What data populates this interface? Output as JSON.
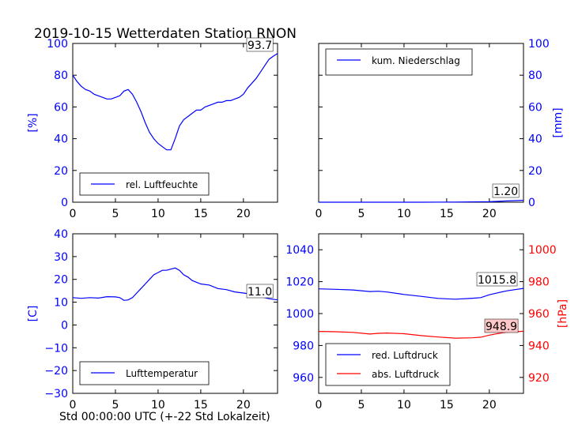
{
  "figure": {
    "title": "2019-10-15 Wetterdaten Station RNON",
    "xlabel": "Std 00:00:00 UTC (+-22 Std Lokalzeit)"
  },
  "colors": {
    "blue": "#0000ff",
    "red": "#ff0000",
    "annot_bg": "#ffffff",
    "annot_bg_red": "#ffc8c8"
  },
  "chart_data": [
    {
      "id": "humidity",
      "type": "line",
      "ylabel": "[%]",
      "xlim": [
        0,
        24
      ],
      "ylim": [
        0,
        100
      ],
      "xticks": [
        0,
        5,
        10,
        15,
        20
      ],
      "yticks": [
        0,
        20,
        40,
        60,
        80,
        100
      ],
      "legend": "bottom-left",
      "annotation": "93.7",
      "series": [
        {
          "name": "rel. Luftfeuchte",
          "color": "#0000ff",
          "x": [
            0,
            0.5,
            1,
            1.5,
            2,
            2.5,
            3,
            3.5,
            4,
            4.5,
            5,
            5.5,
            6,
            6.5,
            7,
            7.5,
            8,
            8.5,
            9,
            9.5,
            10,
            10.5,
            11,
            11.5,
            12,
            12.5,
            13,
            13.5,
            14,
            14.5,
            15,
            15.5,
            16,
            16.5,
            17,
            17.5,
            18,
            18.5,
            19,
            19.5,
            20,
            20.5,
            21,
            21.5,
            22,
            22.5,
            23,
            23.5,
            24
          ],
          "y": [
            80,
            76,
            73,
            71,
            70,
            68,
            67,
            66,
            65,
            65,
            66,
            67,
            70,
            71,
            68,
            63,
            57,
            50,
            44,
            40,
            37,
            35,
            33,
            33,
            40,
            48,
            52,
            54,
            56,
            58,
            58,
            60,
            61,
            62,
            63,
            63,
            64,
            64,
            65,
            66,
            68,
            72,
            75,
            78,
            82,
            86,
            90,
            92,
            93.7
          ]
        }
      ]
    },
    {
      "id": "precip",
      "type": "line",
      "ylabel": "[mm]",
      "xlim": [
        0,
        24
      ],
      "ylim": [
        0,
        100
      ],
      "xticks": [
        0,
        5,
        10,
        15,
        20
      ],
      "yticks": [
        0,
        20,
        40,
        60,
        80,
        100
      ],
      "legend": "top-left",
      "annotation": "1.20",
      "series": [
        {
          "name": "kum. Niederschlag",
          "color": "#0000ff",
          "x": [
            0,
            4,
            8,
            12,
            16,
            20,
            22,
            24
          ],
          "y": [
            0,
            0,
            0,
            0,
            0.1,
            0.3,
            0.8,
            1.2
          ]
        }
      ]
    },
    {
      "id": "temperature",
      "type": "line",
      "ylabel": "[C]",
      "xlim": [
        0,
        24
      ],
      "ylim": [
        -30,
        40
      ],
      "xticks": [
        0,
        5,
        10,
        15,
        20
      ],
      "yticks": [
        -30,
        -20,
        -10,
        0,
        10,
        20,
        30,
        40
      ],
      "legend": "bottom-left",
      "annotation": "11.0",
      "series": [
        {
          "name": "Lufttemperatur",
          "color": "#0000ff",
          "x": [
            0,
            1,
            2,
            3,
            4,
            5,
            5.5,
            6,
            6.5,
            7,
            7.5,
            8,
            8.5,
            9,
            9.5,
            10,
            10.5,
            11,
            11.5,
            12,
            12.5,
            13,
            13.5,
            14,
            15,
            16,
            17,
            18,
            19,
            20,
            21,
            22,
            23,
            24
          ],
          "y": [
            12,
            11.7,
            12,
            11.8,
            12.4,
            12.3,
            12,
            10.8,
            11,
            12,
            14,
            16,
            18,
            20,
            22,
            23,
            24,
            24,
            24.5,
            25,
            24,
            22,
            21,
            19.5,
            18,
            17.5,
            16,
            15.5,
            14.5,
            14,
            13.5,
            12.5,
            11.5,
            11
          ]
        }
      ]
    },
    {
      "id": "pressure",
      "type": "line",
      "ylabel": "[hPa]",
      "xlim": [
        0,
        24
      ],
      "ylim": [
        950,
        1050
      ],
      "ylim_right": [
        910,
        1010
      ],
      "xticks": [
        0,
        5,
        10,
        15,
        20
      ],
      "yticks": [
        960,
        980,
        1000,
        1020,
        1040
      ],
      "yticks_right": [
        920,
        940,
        960,
        980,
        1000
      ],
      "legend": "bottom-left",
      "annotation": "1015.8",
      "annotation2": "948.9",
      "series": [
        {
          "name": "red. Luftdruck",
          "color": "#0000ff",
          "x": [
            0,
            2,
            4,
            6,
            7,
            8,
            10,
            12,
            14,
            16,
            18,
            19,
            20,
            21,
            22,
            23,
            24
          ],
          "y": [
            1015.5,
            1015.2,
            1014.8,
            1013.8,
            1014.0,
            1013.5,
            1012.0,
            1010.8,
            1009.5,
            1009.0,
            1009.6,
            1010.0,
            1011.8,
            1013.0,
            1014.2,
            1015.0,
            1015.8
          ]
        },
        {
          "name": "abs. Luftdruck",
          "color": "#ff0000",
          "x": [
            0,
            2,
            4,
            6,
            7,
            8,
            10,
            12,
            14,
            16,
            18,
            19,
            20,
            21,
            22,
            23,
            24
          ],
          "y": [
            948.8,
            948.6,
            948.2,
            947.2,
            947.6,
            947.8,
            947.4,
            946.2,
            945.3,
            944.6,
            944.8,
            945.2,
            946.5,
            947.5,
            948.3,
            948.6,
            948.9
          ]
        }
      ]
    }
  ]
}
